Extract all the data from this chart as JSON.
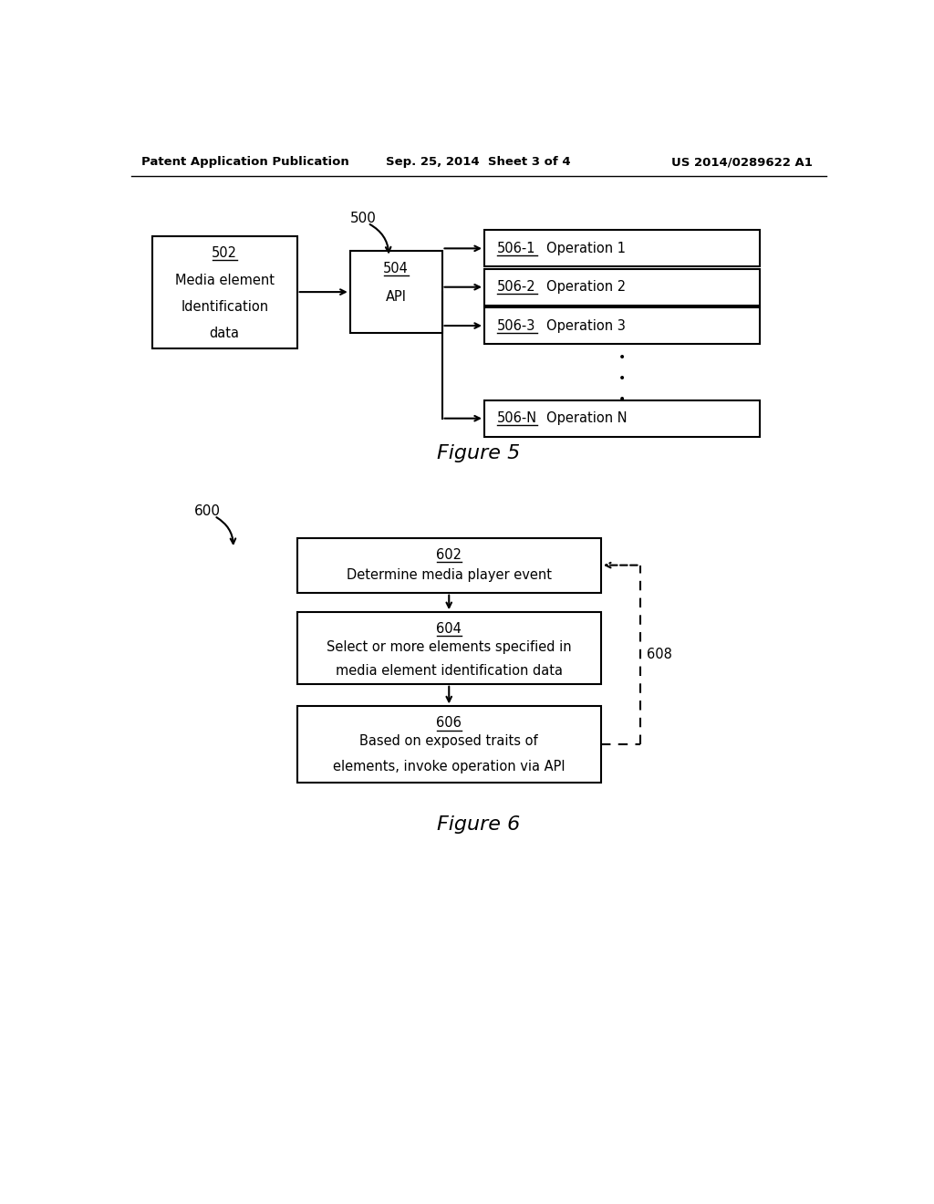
{
  "bg_color": "#ffffff",
  "header_left": "Patent Application Publication",
  "header_center": "Sep. 25, 2014  Sheet 3 of 4",
  "header_right": "US 2014/0289622 A1",
  "fig5_label": "500",
  "fig5_caption": "Figure 5",
  "fig6_label": "600",
  "fig6_caption": "Figure 6",
  "label608": "608"
}
